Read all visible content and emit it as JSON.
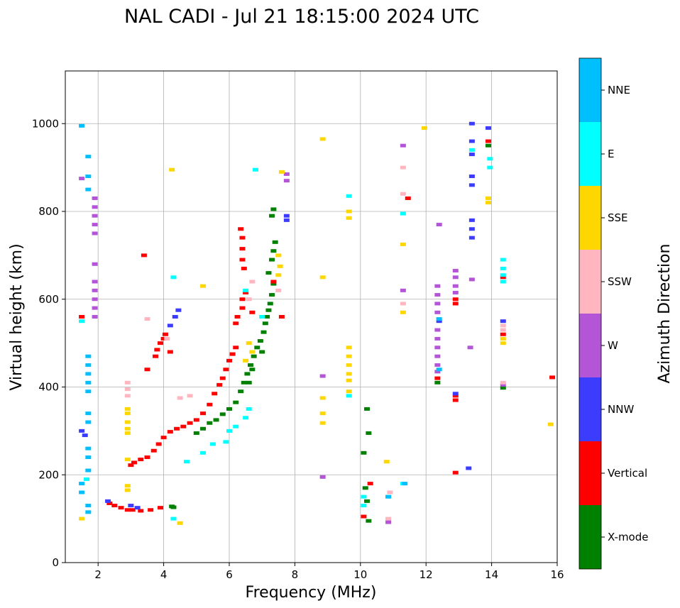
{
  "chart_data": {
    "type": "scatter",
    "title": "NAL CADI - Jul 21 18:15:00 2024 UTC",
    "xlabel": "Frequency (MHz)",
    "ylabel": "Virtual height (km)",
    "xlim": [
      1,
      16
    ],
    "ylim": [
      0,
      1120
    ],
    "xticks": [
      2,
      4,
      6,
      8,
      10,
      12,
      14,
      16
    ],
    "yticks": [
      0,
      200,
      400,
      600,
      800,
      1000
    ],
    "grid": true,
    "colorbar": {
      "label": "Azimuth Direction",
      "categories": [
        {
          "name": "X-mode",
          "color": "#008000"
        },
        {
          "name": "Vertical",
          "color": "#ff0000"
        },
        {
          "name": "NNW",
          "color": "#3c3cff"
        },
        {
          "name": "W",
          "color": "#b455d8"
        },
        {
          "name": "SSW",
          "color": "#ffb6c1"
        },
        {
          "name": "SSE",
          "color": "#ffd700"
        },
        {
          "name": "E",
          "color": "#00ffff"
        },
        {
          "name": "NNE",
          "color": "#00bfff"
        }
      ]
    },
    "series": [
      {
        "name": "X-mode",
        "points": [
          [
            4.25,
            128
          ],
          [
            4.3,
            126
          ],
          [
            5.0,
            295
          ],
          [
            5.2,
            305
          ],
          [
            5.4,
            318
          ],
          [
            5.6,
            325
          ],
          [
            5.8,
            338
          ],
          [
            6.0,
            350
          ],
          [
            6.2,
            365
          ],
          [
            6.35,
            390
          ],
          [
            6.45,
            410
          ],
          [
            6.55,
            430
          ],
          [
            6.65,
            450
          ],
          [
            6.75,
            470
          ],
          [
            6.85,
            490
          ],
          [
            6.95,
            505
          ],
          [
            7.05,
            525
          ],
          [
            7.1,
            545
          ],
          [
            7.15,
            560
          ],
          [
            7.2,
            575
          ],
          [
            7.25,
            590
          ],
          [
            7.3,
            610
          ],
          [
            7.35,
            635
          ],
          [
            7.2,
            660
          ],
          [
            7.3,
            690
          ],
          [
            7.35,
            710
          ],
          [
            7.4,
            730
          ],
          [
            7.3,
            790
          ],
          [
            7.35,
            805
          ],
          [
            6.6,
            410
          ],
          [
            6.7,
            440
          ],
          [
            7.0,
            480
          ],
          [
            12.35,
            410
          ],
          [
            10.1,
            250
          ],
          [
            10.2,
            350
          ],
          [
            10.25,
            295
          ],
          [
            10.15,
            170
          ],
          [
            10.2,
            140
          ],
          [
            10.25,
            95
          ],
          [
            14.35,
            398
          ],
          [
            13.9,
            950
          ]
        ]
      },
      {
        "name": "Vertical",
        "points": [
          [
            1.5,
            560
          ],
          [
            2.35,
            135
          ],
          [
            2.5,
            130
          ],
          [
            2.7,
            125
          ],
          [
            2.9,
            120
          ],
          [
            3.05,
            120
          ],
          [
            3.3,
            118
          ],
          [
            3.6,
            120
          ],
          [
            3.9,
            125
          ],
          [
            3.0,
            222
          ],
          [
            3.1,
            228
          ],
          [
            3.3,
            235
          ],
          [
            3.5,
            240
          ],
          [
            3.7,
            255
          ],
          [
            3.85,
            270
          ],
          [
            4.0,
            285
          ],
          [
            4.2,
            298
          ],
          [
            4.4,
            305
          ],
          [
            4.6,
            310
          ],
          [
            4.8,
            318
          ],
          [
            5.0,
            325
          ],
          [
            5.2,
            340
          ],
          [
            5.4,
            360
          ],
          [
            5.55,
            385
          ],
          [
            5.7,
            405
          ],
          [
            5.8,
            420
          ],
          [
            5.9,
            440
          ],
          [
            6.0,
            460
          ],
          [
            6.1,
            475
          ],
          [
            6.2,
            490
          ],
          [
            6.2,
            545
          ],
          [
            6.25,
            560
          ],
          [
            6.4,
            740
          ],
          [
            6.35,
            760
          ],
          [
            6.4,
            715
          ],
          [
            6.4,
            690
          ],
          [
            6.45,
            670
          ],
          [
            6.5,
            615
          ],
          [
            6.4,
            600
          ],
          [
            6.4,
            580
          ],
          [
            6.7,
            570
          ],
          [
            3.4,
            700
          ],
          [
            3.5,
            440
          ],
          [
            3.75,
            470
          ],
          [
            3.8,
            485
          ],
          [
            3.9,
            500
          ],
          [
            4.0,
            510
          ],
          [
            4.05,
            520
          ],
          [
            4.2,
            480
          ],
          [
            7.35,
            640
          ],
          [
            7.6,
            560
          ],
          [
            12.35,
            420
          ],
          [
            12.9,
            600
          ],
          [
            12.9,
            590
          ],
          [
            12.9,
            380
          ],
          [
            12.9,
            370
          ],
          [
            12.9,
            205
          ],
          [
            11.45,
            830
          ],
          [
            10.1,
            105
          ],
          [
            10.3,
            180
          ],
          [
            13.9,
            960
          ],
          [
            14.35,
            650
          ],
          [
            14.35,
            520
          ],
          [
            15.85,
            422
          ]
        ]
      },
      {
        "name": "NNW",
        "points": [
          [
            1.5,
            300
          ],
          [
            1.6,
            290
          ],
          [
            2.3,
            140
          ],
          [
            3.0,
            130
          ],
          [
            3.2,
            125
          ],
          [
            4.2,
            540
          ],
          [
            4.35,
            560
          ],
          [
            4.45,
            575
          ],
          [
            13.4,
            1000
          ],
          [
            13.4,
            960
          ],
          [
            13.4,
            930
          ],
          [
            13.4,
            880
          ],
          [
            13.4,
            860
          ],
          [
            13.4,
            780
          ],
          [
            13.4,
            760
          ],
          [
            13.4,
            740
          ],
          [
            12.4,
            550
          ],
          [
            12.9,
            385
          ],
          [
            13.3,
            215
          ],
          [
            13.9,
            990
          ],
          [
            14.35,
            550
          ],
          [
            7.75,
            790
          ],
          [
            7.75,
            780
          ]
        ]
      },
      {
        "name": "W",
        "points": [
          [
            1.5,
            875
          ],
          [
            1.9,
            830
          ],
          [
            1.9,
            810
          ],
          [
            1.9,
            790
          ],
          [
            1.9,
            770
          ],
          [
            1.9,
            750
          ],
          [
            1.9,
            680
          ],
          [
            1.9,
            640
          ],
          [
            1.9,
            620
          ],
          [
            1.9,
            600
          ],
          [
            1.9,
            580
          ],
          [
            1.9,
            560
          ],
          [
            12.35,
            630
          ],
          [
            12.35,
            610
          ],
          [
            12.35,
            590
          ],
          [
            12.35,
            570
          ],
          [
            12.35,
            530
          ],
          [
            12.35,
            510
          ],
          [
            12.35,
            490
          ],
          [
            12.35,
            470
          ],
          [
            12.35,
            450
          ],
          [
            12.35,
            435
          ],
          [
            12.4,
            770
          ],
          [
            12.9,
            665
          ],
          [
            12.9,
            650
          ],
          [
            12.9,
            630
          ],
          [
            12.9,
            615
          ],
          [
            13.35,
            490
          ],
          [
            13.4,
            645
          ],
          [
            7.75,
            885
          ],
          [
            7.75,
            870
          ],
          [
            8.85,
            425
          ],
          [
            8.85,
            195
          ],
          [
            11.3,
            620
          ],
          [
            11.3,
            950
          ],
          [
            14.35,
            405
          ],
          [
            10.85,
            92
          ]
        ]
      },
      {
        "name": "SSW",
        "points": [
          [
            2.9,
            410
          ],
          [
            2.9,
            395
          ],
          [
            2.9,
            380
          ],
          [
            6.6,
            600
          ],
          [
            6.7,
            640
          ],
          [
            7.5,
            620
          ],
          [
            11.3,
            900
          ],
          [
            11.3,
            840
          ],
          [
            11.3,
            590
          ],
          [
            10.9,
            160
          ],
          [
            10.85,
            100
          ],
          [
            14.35,
            540
          ],
          [
            14.35,
            530
          ],
          [
            14.35,
            410
          ],
          [
            4.5,
            375
          ],
          [
            4.8,
            380
          ],
          [
            3.5,
            555
          ],
          [
            4.1,
            510
          ]
        ]
      },
      {
        "name": "SSE",
        "points": [
          [
            2.9,
            350
          ],
          [
            2.9,
            340
          ],
          [
            2.9,
            320
          ],
          [
            2.9,
            305
          ],
          [
            2.9,
            295
          ],
          [
            2.9,
            235
          ],
          [
            2.9,
            175
          ],
          [
            2.9,
            165
          ],
          [
            8.85,
            965
          ],
          [
            8.85,
            650
          ],
          [
            8.85,
            375
          ],
          [
            8.85,
            340
          ],
          [
            8.85,
            318
          ],
          [
            9.65,
            800
          ],
          [
            9.65,
            785
          ],
          [
            9.65,
            490
          ],
          [
            9.65,
            470
          ],
          [
            9.65,
            450
          ],
          [
            9.65,
            430
          ],
          [
            9.65,
            415
          ],
          [
            9.65,
            390
          ],
          [
            11.3,
            725
          ],
          [
            11.3,
            570
          ],
          [
            11.95,
            990
          ],
          [
            10.8,
            230
          ],
          [
            7.6,
            890
          ],
          [
            7.5,
            700
          ],
          [
            7.55,
            675
          ],
          [
            7.5,
            655
          ],
          [
            6.6,
            500
          ],
          [
            6.7,
            480
          ],
          [
            6.5,
            460
          ],
          [
            5.2,
            630
          ],
          [
            4.25,
            895
          ],
          [
            4.5,
            90
          ],
          [
            13.9,
            830
          ],
          [
            13.9,
            820
          ],
          [
            14.35,
            510
          ],
          [
            14.35,
            500
          ],
          [
            15.8,
            315
          ],
          [
            1.5,
            100
          ]
        ]
      },
      {
        "name": "E",
        "points": [
          [
            1.5,
            550
          ],
          [
            1.65,
            190
          ],
          [
            4.3,
            650
          ],
          [
            4.3,
            100
          ],
          [
            5.2,
            250
          ],
          [
            5.5,
            270
          ],
          [
            4.7,
            230
          ],
          [
            6.0,
            300
          ],
          [
            6.2,
            310
          ],
          [
            6.5,
            330
          ],
          [
            6.6,
            350
          ],
          [
            5.9,
            275
          ],
          [
            9.65,
            835
          ],
          [
            9.65,
            380
          ],
          [
            11.3,
            795
          ],
          [
            11.3,
            180
          ],
          [
            10.85,
            150
          ],
          [
            10.1,
            150
          ],
          [
            10.1,
            130
          ],
          [
            13.4,
            940
          ],
          [
            13.95,
            900
          ],
          [
            13.95,
            920
          ],
          [
            14.35,
            690
          ],
          [
            14.35,
            670
          ],
          [
            14.35,
            655
          ],
          [
            14.35,
            640
          ],
          [
            6.5,
            620
          ],
          [
            7.0,
            560
          ],
          [
            6.8,
            895
          ]
        ]
      },
      {
        "name": "NNE",
        "points": [
          [
            1.5,
            995
          ],
          [
            1.7,
            925
          ],
          [
            1.7,
            880
          ],
          [
            1.7,
            850
          ],
          [
            1.7,
            470
          ],
          [
            1.7,
            450
          ],
          [
            1.7,
            430
          ],
          [
            1.7,
            410
          ],
          [
            1.7,
            390
          ],
          [
            1.7,
            340
          ],
          [
            1.7,
            320
          ],
          [
            1.7,
            260
          ],
          [
            1.7,
            240
          ],
          [
            1.7,
            210
          ],
          [
            1.7,
            130
          ],
          [
            1.7,
            115
          ],
          [
            1.5,
            180
          ],
          [
            1.5,
            160
          ],
          [
            12.4,
            555
          ],
          [
            12.4,
            440
          ],
          [
            11.35,
            180
          ],
          [
            10.85,
            150
          ]
        ]
      }
    ]
  }
}
